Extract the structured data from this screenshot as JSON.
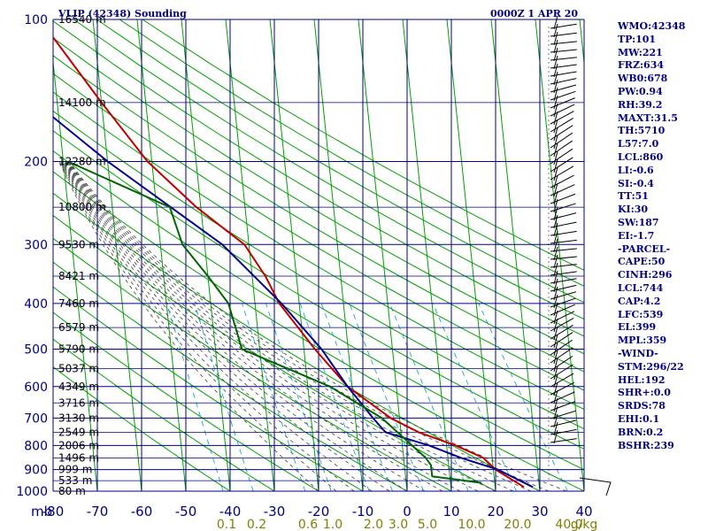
{
  "header": {
    "station_title": "VLIP (42348) Sounding",
    "time_title": "0000Z  1 APR 20"
  },
  "chart_data": {
    "type": "line",
    "title": "VLIP (42348) Sounding",
    "subtitle": "0000Z  1 APR 20",
    "xlabel": "",
    "ylabel": "",
    "x_corner_label": "mb",
    "pressure_axis": {
      "scale": "log",
      "range": [
        1000,
        100
      ],
      "ticks": [
        100,
        200,
        300,
        400,
        500,
        600,
        700,
        800,
        900,
        1000
      ],
      "labels": [
        "100",
        "200",
        "300",
        "400",
        "500",
        "600",
        "700",
        "800",
        "900",
        "1000"
      ]
    },
    "temperature_axis": {
      "range": [
        -80,
        40
      ],
      "ticks": [
        -80,
        -70,
        -60,
        -50,
        -40,
        -30,
        -20,
        -10,
        0,
        10,
        20,
        30,
        40
      ],
      "labels": [
        "-80",
        "-70",
        "-60",
        "-50",
        "-40",
        "-30",
        "-20",
        "-10",
        "0",
        "10",
        "20",
        "30",
        "40"
      ],
      "grid": true
    },
    "heights": [
      {
        "p": 100,
        "label": "16540 m"
      },
      {
        "p": 150,
        "label": "14100 m"
      },
      {
        "p": 200,
        "label": "12280 m"
      },
      {
        "p": 250,
        "label": "10800 m"
      },
      {
        "p": 300,
        "label": "9530 m"
      },
      {
        "p": 350,
        "label": "8421 m"
      },
      {
        "p": 400,
        "label": "7460 m"
      },
      {
        "p": 450,
        "label": "6579 m"
      },
      {
        "p": 500,
        "label": "5790 m"
      },
      {
        "p": 550,
        "label": "5037 m"
      },
      {
        "p": 600,
        "label": "4349 m"
      },
      {
        "p": 650,
        "label": "3716 m"
      },
      {
        "p": 700,
        "label": "3130 m"
      },
      {
        "p": 750,
        "label": "2549 m"
      },
      {
        "p": 800,
        "label": "2006 m"
      },
      {
        "p": 850,
        "label": "1496 m"
      },
      {
        "p": 900,
        "label": "999 m"
      },
      {
        "p": 950,
        "label": "533 m"
      },
      {
        "p": 1000,
        "label": "80 m"
      }
    ],
    "mixing_ratio_labels": [
      "0.1",
      "0.2",
      "0.6",
      "1.0",
      "2.0",
      "3.0",
      "5.0",
      "10.0",
      "20.0",
      "40.0",
      "g/kg"
    ],
    "series": [
      {
        "color": "#c00000",
        "points": [
          {
            "p": 980,
            "t": 26.5
          },
          {
            "p": 900,
            "t": 20.5
          },
          {
            "p": 850,
            "t": 18
          },
          {
            "p": 800,
            "t": 12
          },
          {
            "p": 750,
            "t": 4
          },
          {
            "p": 700,
            "t": -2
          },
          {
            "p": 600,
            "t": -11
          },
          {
            "p": 500,
            "t": -17.5
          },
          {
            "p": 400,
            "t": -24.5
          },
          {
            "p": 350,
            "t": -27
          },
          {
            "p": 300,
            "t": -31
          },
          {
            "p": 250,
            "t": -41
          },
          {
            "p": 200,
            "t": -51
          },
          {
            "p": 150,
            "t": -60
          },
          {
            "p": 100,
            "t": -72
          }
        ]
      },
      {
        "color": "#00008b",
        "points": [
          {
            "p": 980,
            "t": 28.5
          },
          {
            "p": 900,
            "t": 21
          },
          {
            "p": 850,
            "t": 13
          },
          {
            "p": 800,
            "t": 6
          },
          {
            "p": 750,
            "t": -3.5
          },
          {
            "p": 700,
            "t": -6
          },
          {
            "p": 600,
            "t": -11
          },
          {
            "p": 500,
            "t": -16
          },
          {
            "p": 400,
            "t": -24
          },
          {
            "p": 300,
            "t": -36
          },
          {
            "p": 200,
            "t": -60
          },
          {
            "p": 150,
            "t": -75
          },
          {
            "p": 100,
            "t": -102
          }
        ]
      },
      {
        "color": "#006400",
        "points": [
          {
            "p": 960,
            "t": 17
          },
          {
            "p": 930,
            "t": 6
          },
          {
            "p": 880,
            "t": 6
          },
          {
            "p": 850,
            "t": 5
          },
          {
            "p": 700,
            "t": -4
          },
          {
            "p": 600,
            "t": -15
          },
          {
            "p": 500,
            "t": -34
          },
          {
            "p": 400,
            "t": -36
          },
          {
            "p": 350,
            "t": -40
          },
          {
            "p": 300,
            "t": -45
          },
          {
            "p": 250,
            "t": -47
          },
          {
            "p": 200,
            "t": -69
          }
        ]
      }
    ],
    "grid": true,
    "wind_barbs": "right margin",
    "colors": {
      "grid": "#000080",
      "isotherm": "#00a000",
      "dry_adiabat": "#00a000",
      "moist_adiabat": "#404040",
      "mixing_ratio": "#00a0c0",
      "temperature": "#c00000",
      "dewpoint": "#006400",
      "parcel": "#00008b"
    }
  },
  "indices": [
    "WMO:42348",
    "TP:101",
    "MW:221",
    "FRZ:634",
    "WB0:678",
    "PW:0.94",
    "RH:39.2",
    "MAXT:31.5",
    "TH:5710",
    "L57:7.0",
    "LCL:860",
    "LI:-0.6",
    "SI:-0.4",
    "TT:51",
    "KI:30",
    "SW:187",
    "EI:-1.7",
    "-PARCEL-",
    "CAPE:50",
    "CINH:296",
    "LCL:744",
    "CAP:4.2",
    "LFC:539",
    "EL:399",
    "MPL:359",
    "-WIND-",
    "STM:296/22",
    "HEL:192",
    "SHR+:0.0",
    "SRDS:78",
    "EHI:0.1",
    "BRN:0.2",
    "BSHR:239"
  ]
}
